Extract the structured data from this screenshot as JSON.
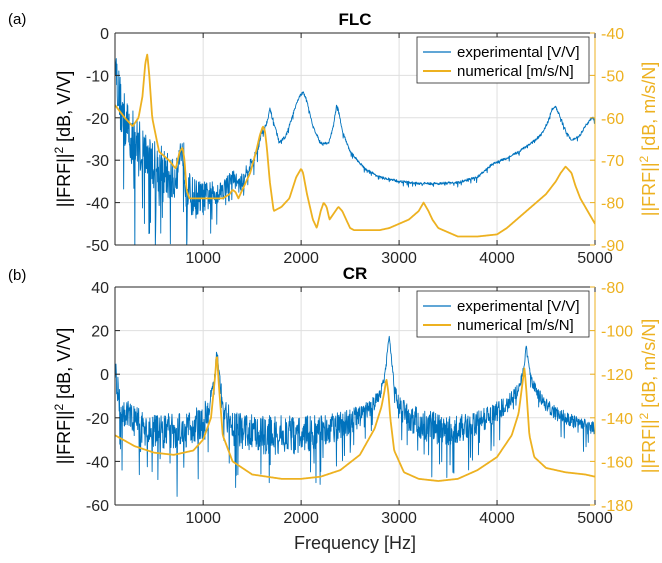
{
  "colors": {
    "experimental": "#0072BD",
    "numerical": "#EDB120",
    "axis": "#262626",
    "grid": "#DFDFDF"
  },
  "chart_data": [
    {
      "panel_label": "(a)",
      "type": "line",
      "title": "FLC",
      "xlim": [
        100,
        5000
      ],
      "xticks": [
        1000,
        2000,
        3000,
        4000,
        5000
      ],
      "xlabel": "",
      "ylabel_left": "||FRF||",
      "ylabel_left_sup": "2",
      "ylabel_left_unit": " [dB, V/V]",
      "ylim_left": [
        -50,
        0
      ],
      "yticks_left": [
        0,
        -10,
        -20,
        -30,
        -40,
        -50
      ],
      "ylabel_right": "||FRF||",
      "ylabel_right_sup": "2",
      "ylabel_right_unit": " [dB, m/s/N]",
      "ylim_right": [
        -90,
        -40
      ],
      "yticks_right": [
        -40,
        -50,
        -60,
        -70,
        -80,
        -90
      ],
      "grid": true,
      "legend_position": "top-right",
      "series": [
        {
          "name": "experimental [V/V]",
          "axis": "left",
          "noisy": true,
          "x": [
            100,
            130,
            170,
            220,
            280,
            350,
            420,
            500,
            600,
            700,
            760,
            780,
            800,
            830,
            900,
            1000,
            1100,
            1200,
            1300,
            1340,
            1380,
            1450,
            1520,
            1560,
            1590,
            1620,
            1650,
            1680,
            1720,
            1780,
            1850,
            1920,
            1980,
            2020,
            2060,
            2120,
            2200,
            2280,
            2330,
            2360,
            2380,
            2420,
            2500,
            2650,
            2800,
            3000,
            3200,
            3400,
            3600,
            3800,
            3950,
            4000,
            4050,
            4150,
            4250,
            4350,
            4450,
            4520,
            4560,
            4600,
            4650,
            4700,
            4750,
            4800,
            4850,
            4900,
            4950,
            4980,
            5000
          ],
          "values": [
            -5,
            -13,
            -19,
            -22,
            -25,
            -27,
            -29,
            -31,
            -33,
            -35,
            -29,
            -27,
            -30,
            -37,
            -39,
            -39,
            -38,
            -37,
            -34,
            -35,
            -36,
            -32,
            -30,
            -27,
            -24,
            -23,
            -21,
            -18,
            -21,
            -26,
            -24,
            -19,
            -15,
            -14,
            -16,
            -22,
            -26,
            -26,
            -22,
            -17,
            -18,
            -23,
            -28,
            -32,
            -34,
            -35,
            -35.5,
            -35.5,
            -35.3,
            -34,
            -31,
            -30.5,
            -30,
            -29,
            -27.5,
            -26,
            -24,
            -21,
            -18,
            -17.5,
            -20,
            -23,
            -25,
            -25,
            -24,
            -22,
            -20.5,
            -20,
            -21
          ],
          "noise_amp": [
            3,
            6,
            7,
            7,
            7,
            7,
            6,
            6,
            6,
            5,
            4,
            3,
            5,
            5,
            5,
            4,
            3,
            2.5,
            2,
            2,
            2,
            2,
            1.5,
            1,
            0.8,
            0.6,
            0.5,
            0.5,
            0.5,
            0.4,
            0.4,
            0.4,
            0.3,
            0.3,
            0.3,
            0.3,
            0.3,
            0.3,
            0.3,
            0.3,
            0.3,
            0.3,
            0.3,
            0.3,
            0.3,
            0.3,
            0.3,
            0.3,
            0.3,
            0.3,
            0.3,
            0.3,
            0.3,
            0.3,
            0.3,
            0.3,
            0.3,
            0.3,
            0.3,
            0.3,
            0.3,
            0.3,
            0.3,
            0.3,
            0.3,
            0.3,
            0.3,
            0.3,
            0.3
          ]
        },
        {
          "name": "numerical [m/s/N]",
          "axis": "right",
          "noisy": false,
          "x": [
            100,
            200,
            280,
            340,
            380,
            410,
            430,
            450,
            480,
            550,
            650,
            720,
            760,
            790,
            810,
            830,
            860,
            950,
            1100,
            1200,
            1270,
            1300,
            1330,
            1360,
            1420,
            1480,
            1540,
            1580,
            1610,
            1630,
            1650,
            1680,
            1720,
            1800,
            1880,
            1950,
            2000,
            2020,
            2060,
            2120,
            2160,
            2200,
            2230,
            2260,
            2290,
            2320,
            2350,
            2380,
            2420,
            2460,
            2500,
            2540,
            2600,
            2700,
            2800,
            2900,
            3000,
            3100,
            3200,
            3250,
            3300,
            3340,
            3400,
            3500,
            3600,
            3800,
            4000,
            4100,
            4200,
            4300,
            4350,
            4400,
            4500,
            4600,
            4650,
            4700,
            4760,
            4800,
            4850,
            4900,
            4950,
            5000
          ],
          "values": [
            -57,
            -60,
            -62,
            -60,
            -55,
            -47,
            -45,
            -50,
            -60,
            -68,
            -70,
            -72,
            -68,
            -67,
            -70,
            -77,
            -79,
            -79,
            -79,
            -79,
            -78,
            -77,
            -77.5,
            -79,
            -76,
            -73,
            -68,
            -64,
            -62,
            -63,
            -67,
            -75,
            -82,
            -81,
            -79,
            -74,
            -72,
            -73,
            -78,
            -84,
            -86,
            -82,
            -80,
            -81,
            -84,
            -83,
            -82,
            -81,
            -82,
            -84,
            -86,
            -86.5,
            -86.5,
            -86.5,
            -86.5,
            -86,
            -85,
            -84,
            -82,
            -80,
            -82,
            -84,
            -86,
            -87,
            -88,
            -88,
            -87.5,
            -86,
            -84,
            -82,
            -81,
            -80,
            -78,
            -75,
            -73,
            -71.5,
            -73,
            -76,
            -79,
            -81,
            -83,
            -85
          ]
        }
      ]
    },
    {
      "panel_label": "(b)",
      "type": "line",
      "title": "CR",
      "xlim": [
        100,
        5000
      ],
      "xticks": [
        1000,
        2000,
        3000,
        4000,
        5000
      ],
      "xlabel": "Frequency [Hz]",
      "ylabel_left": "||FRF||",
      "ylabel_left_sup": "2",
      "ylabel_left_unit": " [dB, V/V]",
      "ylim_left": [
        -60,
        40
      ],
      "yticks_left": [
        40,
        20,
        0,
        -20,
        -40,
        -60
      ],
      "ylabel_right": "||FRF||",
      "ylabel_right_sup": "2",
      "ylabel_right_unit": " [dB, m/s/N]",
      "ylim_right": [
        -180,
        -80
      ],
      "yticks_right": [
        -80,
        -100,
        -120,
        -140,
        -160,
        -180
      ],
      "grid": true,
      "legend_position": "top-right",
      "series": [
        {
          "name": "experimental [V/V]",
          "axis": "left",
          "noisy": true,
          "x": [
            100,
            150,
            250,
            400,
            600,
            800,
            1000,
            1080,
            1120,
            1140,
            1160,
            1200,
            1300,
            1500,
            1700,
            1900,
            2100,
            2300,
            2500,
            2700,
            2800,
            2850,
            2880,
            2900,
            2920,
            2950,
            3000,
            3100,
            3300,
            3500,
            3700,
            3900,
            4100,
            4200,
            4250,
            4280,
            4300,
            4320,
            4350,
            4400,
            4500,
            4600,
            4700,
            4800,
            4900,
            5000
          ],
          "values": [
            5,
            -15,
            -20,
            -25,
            -26,
            -26,
            -22,
            -12,
            0,
            12,
            0,
            -15,
            -25,
            -27,
            -28,
            -28,
            -27,
            -25,
            -22,
            -16,
            -10,
            -2,
            10,
            18,
            8,
            -5,
            -14,
            -20,
            -24,
            -26,
            -24,
            -20,
            -14,
            -8,
            -2,
            5,
            14,
            5,
            -3,
            -8,
            -14,
            -18,
            -20,
            -22,
            -23,
            -25
          ],
          "noise_amp": [
            8,
            7,
            7,
            8,
            8,
            8,
            8,
            5,
            3,
            2,
            3,
            6,
            8,
            9,
            9,
            9,
            8,
            7,
            6,
            4,
            3,
            2,
            1,
            1,
            1,
            2,
            4,
            6,
            8,
            7,
            6,
            5,
            4,
            3,
            2,
            1,
            1,
            1,
            2,
            3,
            3,
            3,
            3,
            3,
            3,
            3
          ]
        },
        {
          "name": "numerical [m/s/N]",
          "axis": "right",
          "noisy": false,
          "x": [
            100,
            300,
            500,
            700,
            900,
            1000,
            1080,
            1120,
            1140,
            1160,
            1200,
            1300,
            1500,
            1800,
            2000,
            2200,
            2400,
            2600,
            2750,
            2820,
            2850,
            2870,
            2890,
            2910,
            2950,
            3050,
            3200,
            3400,
            3600,
            3800,
            4000,
            4150,
            4220,
            4260,
            4280,
            4300,
            4330,
            4380,
            4500,
            4700,
            4900,
            5000
          ],
          "values": [
            -148,
            -153,
            -156,
            -157,
            -155,
            -150,
            -140,
            -122,
            -110,
            -125,
            -148,
            -160,
            -166,
            -168,
            -168,
            -167,
            -164,
            -157,
            -145,
            -135,
            -128,
            -122,
            -128,
            -140,
            -155,
            -165,
            -168,
            -169,
            -168,
            -164,
            -158,
            -148,
            -138,
            -124,
            -117,
            -128,
            -148,
            -158,
            -163,
            -165,
            -166,
            -167
          ]
        }
      ]
    }
  ]
}
